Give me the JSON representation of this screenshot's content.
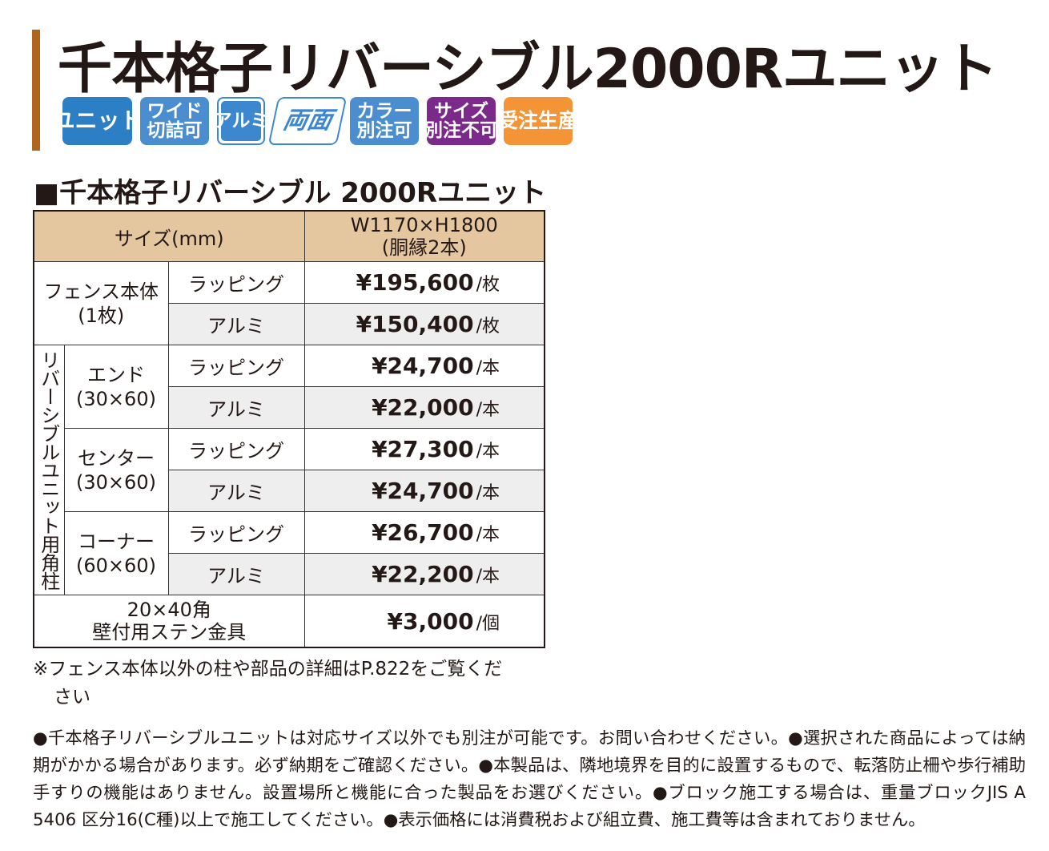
{
  "title": "千本格子リバーシブル2000Rユニット",
  "badges": {
    "unit": "ユニット",
    "wide_1": "ワイド",
    "wide_2": "切詰可",
    "alumi": "アルミ",
    "ryomen": "両面",
    "color_1": "カラー",
    "color_2": "別注可",
    "size_1": "サイズ",
    "size_2": "別注不可",
    "order": "受注生産"
  },
  "subtitle": "■千本格子リバーシブル 2000Rユニット",
  "table": {
    "header_size": "サイズ(mm)",
    "header_dim_1": "W1170×H1800",
    "header_dim_2": "(胴縁2本)",
    "fence_body_1": "フェンス本体",
    "fence_body_2": "(1枚)",
    "vertical_group": "リバーシブルユニット用角柱",
    "end_1": "エンド",
    "end_2": "(30×60)",
    "center_1": "センター",
    "center_2": "(30×60)",
    "corner_1": "コーナー",
    "corner_2": "(60×60)",
    "fitting_1": "20×40角",
    "fitting_2": "壁付用ステン金具",
    "wrapping": "ラッピング",
    "alumi": "アルミ",
    "unit_sheet": "/枚",
    "unit_pc": "/本",
    "unit_piece": "/個",
    "prices": {
      "fence_wrapping": "¥195,600",
      "fence_alumi": "¥150,400",
      "end_wrapping": "¥24,700",
      "end_alumi": "¥22,000",
      "center_wrapping": "¥27,300",
      "center_alumi": "¥24,700",
      "corner_wrapping": "¥26,700",
      "corner_alumi": "¥22,200",
      "fitting": "¥3,000"
    }
  },
  "note_1a": "※フェンス本体以外の柱や部品の詳細はP.822をご覧くだ",
  "note_1b": "さい",
  "note_2": "●千本格子リバーシブルユニットは対応サイズ以外でも別注が可能です。お問い合わせください。●選択された商品によっては納期がかかる場合があります。必ず納期をご確認ください。●本製品は、隣地境界を目的に設置するもので、転落防止柵や歩行補助手すりの機能はありません。設置場所と機能に合った製品をお選びください。●ブロック施工する場合は、重量ブロックJIS A 5406 区分16(C種)以上で施工してください。●表示価格には消費税および組立費、施工費等は含まれておりません。"
}
